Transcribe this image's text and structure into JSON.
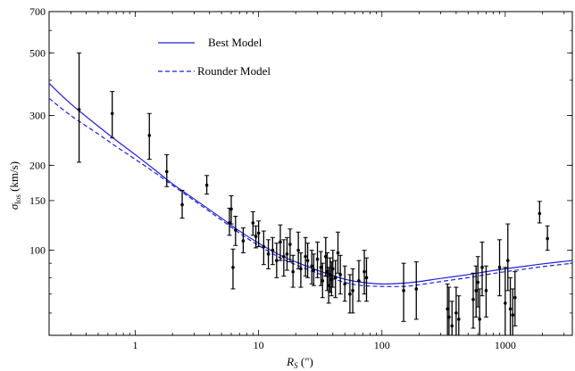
{
  "chart_data": {
    "type": "scatter",
    "title": "",
    "xlabel": "R",
    "xlabel_sub": "S",
    "xlabel_unit": " (\")",
    "ylabel": "σ",
    "ylabel_sub": "los",
    "ylabel_unit": " (km/s)",
    "xscale": "log",
    "yscale": "log",
    "xlim": [
      0.2,
      3500
    ],
    "ylim": [
      50,
      700
    ],
    "x_ticks": [
      1,
      10,
      100,
      1000
    ],
    "x_tick_labels": [
      "1",
      "10",
      "100",
      "1000"
    ],
    "y_ticks": [
      100,
      150,
      200,
      300,
      500,
      700
    ],
    "y_tick_labels": [
      "100",
      "150",
      "200",
      "300",
      "500",
      "700"
    ],
    "grid": false,
    "legend_position": "top-left",
    "series": [
      {
        "name": "Best Model",
        "kind": "line",
        "style": "solid",
        "color": "#1f1fd6",
        "x": [
          0.2,
          0.3,
          0.5,
          0.7,
          1,
          1.5,
          2,
          3,
          5,
          7,
          10,
          15,
          20,
          30,
          50,
          70,
          100,
          150,
          200,
          300,
          500,
          700,
          1000,
          1500,
          2000,
          3500
        ],
        "y": [
          390,
          330,
          275,
          245,
          218,
          190,
          172,
          152,
          130,
          117,
          106,
          96,
          91,
          85,
          79,
          77,
          76,
          76.5,
          77.5,
          79.5,
          82,
          84,
          86,
          88,
          89.5,
          92
        ]
      },
      {
        "name": "Rounder Model",
        "kind": "line",
        "style": "dashed",
        "color": "#1f1fd6",
        "x": [
          0.2,
          0.3,
          0.5,
          0.7,
          1,
          1.5,
          2,
          3,
          5,
          7,
          10,
          15,
          20,
          30,
          50,
          70,
          100,
          150,
          200,
          300,
          500,
          700,
          1000,
          1500,
          2000,
          3500
        ],
        "y": [
          345,
          300,
          258,
          233,
          210,
          186,
          170,
          150,
          128,
          115,
          104,
          94,
          89,
          83,
          77,
          75,
          74.5,
          74.5,
          75.5,
          77.5,
          80,
          82,
          84,
          86,
          87.5,
          90
        ]
      },
      {
        "name": "",
        "kind": "points",
        "color": "#000000",
        "x": [
          0.35,
          0.65,
          1.3,
          1.8,
          2.4,
          3.8,
          5.8,
          6.0,
          6.2,
          6.5,
          7.5,
          9.0,
          9.5,
          10.0,
          11.0,
          12.0,
          13.0,
          14.0,
          15.0,
          16.0,
          17.0,
          18.0,
          19.0,
          21.0,
          22.0,
          24.0,
          25.0,
          27.0,
          28.0,
          30.0,
          32.0,
          33.0,
          35.0,
          36.0,
          37.0,
          38.0,
          39.0,
          40.0,
          42.0,
          44.0,
          46.0,
          50.0,
          55.0,
          58.0,
          65.0,
          72.0,
          75.0,
          150.0,
          190.0,
          340.0,
          350.0,
          370.0,
          400.0,
          420.0,
          550.0,
          580.0,
          600.0,
          620.0,
          650.0,
          700.0,
          900.0,
          1000.0,
          1050.0,
          1100.0,
          1150.0,
          1200.0,
          1900.0,
          2200.0
        ],
        "y": [
          315,
          305,
          255,
          190,
          145,
          170,
          125,
          140,
          87,
          118,
          108,
          125,
          112,
          115,
          103,
          97,
          100,
          92,
          107,
          95,
          97,
          105,
          84,
          100,
          86,
          95,
          92,
          88,
          85,
          93,
          87,
          78,
          95,
          84,
          75,
          82,
          79,
          86,
          80,
          98,
          82,
          76,
          70,
          72,
          78,
          84,
          80,
          72,
          73,
          62,
          58,
          54,
          60,
          57,
          67,
          72,
          77,
          57,
          87,
          72,
          87,
          65,
          92,
          62,
          59,
          68,
          135,
          110
        ],
        "err_lo": [
          110,
          55,
          45,
          22,
          15,
          12,
          12,
          16,
          14,
          14,
          10,
          12,
          10,
          12,
          14,
          11,
          11,
          12,
          15,
          14,
          12,
          14,
          10,
          14,
          12,
          14,
          12,
          12,
          10,
          13,
          12,
          10,
          14,
          12,
          10,
          11,
          10,
          12,
          12,
          15,
          12,
          10,
          10,
          12,
          12,
          14,
          14,
          16,
          16,
          12,
          14,
          10,
          12,
          10,
          14,
          14,
          14,
          12,
          18,
          14,
          18,
          16,
          20,
          14,
          12,
          14,
          10,
          10
        ],
        "err_hi": [
          185,
          60,
          50,
          28,
          18,
          14,
          16,
          16,
          14,
          14,
          12,
          12,
          10,
          12,
          14,
          12,
          11,
          14,
          16,
          14,
          14,
          14,
          12,
          16,
          12,
          16,
          14,
          12,
          12,
          14,
          12,
          12,
          16,
          14,
          12,
          12,
          12,
          14,
          12,
          18,
          14,
          12,
          12,
          14,
          14,
          16,
          14,
          18,
          18,
          14,
          16,
          12,
          14,
          12,
          16,
          16,
          18,
          16,
          20,
          16,
          22,
          22,
          32,
          18,
          14,
          16,
          14,
          12
        ]
      }
    ]
  }
}
